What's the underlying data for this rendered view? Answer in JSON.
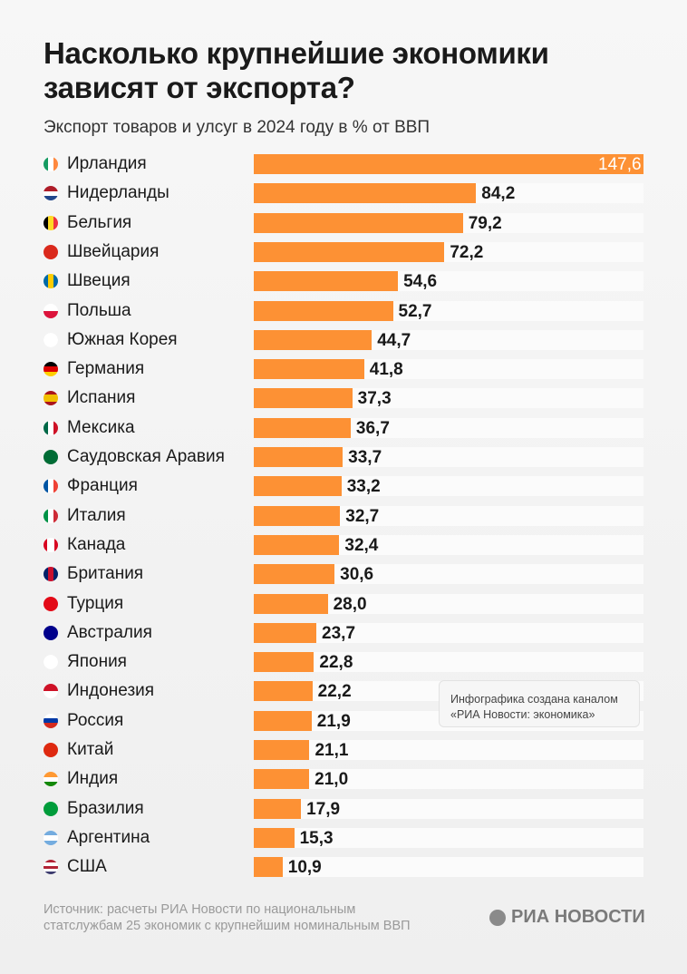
{
  "chart_data": {
    "type": "bar",
    "orientation": "horizontal",
    "title": "Насколько крупнейшие экономики зависят от экспорта?",
    "subtitle": "Экспорт товаров и улсуг в 2024 году в % от ВВП",
    "bar_color": "#fd9134",
    "xlim": [
      0,
      147.6
    ],
    "grid": false,
    "categories": [
      "Ирландия",
      "Нидерланды",
      "Бельгия",
      "Швейцария",
      "Швеция",
      "Польша",
      "Южная Корея",
      "Германия",
      "Испания",
      "Мексика",
      "Саудовская Аравия",
      "Франция",
      "Италия",
      "Канада",
      "Британия",
      "Турция",
      "Австралия",
      "Япония",
      "Индонезия",
      "Россия",
      "Китай",
      "Индия",
      "Бразилия",
      "Аргентина",
      "США"
    ],
    "values": [
      147.6,
      84.2,
      79.2,
      72.2,
      54.6,
      52.7,
      44.7,
      41.8,
      37.3,
      36.7,
      33.7,
      33.2,
      32.7,
      32.4,
      30.6,
      28.0,
      23.7,
      22.8,
      22.2,
      21.9,
      21.1,
      21.0,
      17.9,
      15.3,
      10.9
    ],
    "labels": [
      "147,6",
      "84,2",
      "79,2",
      "72,2",
      "54,6",
      "52,7",
      "44,7",
      "41,8",
      "37,3",
      "36,7",
      "33,7",
      "33,2",
      "32,7",
      "32,4",
      "30,6",
      "28,0",
      "23,7",
      "22,8",
      "22,2",
      "21,9",
      "21,1",
      "21,0",
      "17,9",
      "15,3",
      "10,9"
    ],
    "flags": [
      {
        "icon": "ireland-flag-icon",
        "dir": "v",
        "colors": [
          "#169b62",
          "#ffffff",
          "#ff883e"
        ]
      },
      {
        "icon": "netherlands-flag-icon",
        "dir": "h",
        "colors": [
          "#ae1c28",
          "#ffffff",
          "#21468b"
        ]
      },
      {
        "icon": "belgium-flag-icon",
        "dir": "v",
        "colors": [
          "#000000",
          "#fdda24",
          "#ef3340"
        ]
      },
      {
        "icon": "switzerland-flag-icon",
        "dir": "v",
        "colors": [
          "#da291c"
        ]
      },
      {
        "icon": "sweden-flag-icon",
        "dir": "v",
        "colors": [
          "#006aa7",
          "#fecc00",
          "#006aa7"
        ]
      },
      {
        "icon": "poland-flag-icon",
        "dir": "h",
        "colors": [
          "#ffffff",
          "#dc143c"
        ]
      },
      {
        "icon": "south-korea-flag-icon",
        "dir": "v",
        "colors": [
          "#ffffff"
        ]
      },
      {
        "icon": "germany-flag-icon",
        "dir": "h",
        "colors": [
          "#000000",
          "#dd0000",
          "#ffce00"
        ]
      },
      {
        "icon": "spain-flag-icon",
        "dir": "h",
        "colors": [
          "#aa151b",
          "#f1bf00",
          "#f1bf00",
          "#aa151b"
        ]
      },
      {
        "icon": "mexico-flag-icon",
        "dir": "v",
        "colors": [
          "#006847",
          "#ffffff",
          "#ce1126"
        ]
      },
      {
        "icon": "saudi-arabia-flag-icon",
        "dir": "v",
        "colors": [
          "#006c35"
        ]
      },
      {
        "icon": "france-flag-icon",
        "dir": "v",
        "colors": [
          "#0055a4",
          "#ffffff",
          "#ef4135"
        ]
      },
      {
        "icon": "italy-flag-icon",
        "dir": "v",
        "colors": [
          "#009246",
          "#ffffff",
          "#ce2b37"
        ]
      },
      {
        "icon": "canada-flag-icon",
        "dir": "v",
        "colors": [
          "#d80621",
          "#ffffff",
          "#ffffff",
          "#d80621"
        ]
      },
      {
        "icon": "uk-flag-icon",
        "dir": "v",
        "colors": [
          "#012169",
          "#c8102e",
          "#012169"
        ]
      },
      {
        "icon": "turkey-flag-icon",
        "dir": "v",
        "colors": [
          "#e30a17"
        ]
      },
      {
        "icon": "australia-flag-icon",
        "dir": "v",
        "colors": [
          "#00008b"
        ]
      },
      {
        "icon": "japan-flag-icon",
        "dir": "v",
        "colors": [
          "#ffffff"
        ]
      },
      {
        "icon": "indonesia-flag-icon",
        "dir": "h",
        "colors": [
          "#ce1126",
          "#ffffff"
        ]
      },
      {
        "icon": "russia-flag-icon",
        "dir": "h",
        "colors": [
          "#ffffff",
          "#0039a6",
          "#d52b1e"
        ]
      },
      {
        "icon": "china-flag-icon",
        "dir": "v",
        "colors": [
          "#de2910"
        ]
      },
      {
        "icon": "india-flag-icon",
        "dir": "h",
        "colors": [
          "#ff9933",
          "#ffffff",
          "#138808"
        ]
      },
      {
        "icon": "brazil-flag-icon",
        "dir": "v",
        "colors": [
          "#009c3b"
        ]
      },
      {
        "icon": "argentina-flag-icon",
        "dir": "h",
        "colors": [
          "#74acdf",
          "#ffffff",
          "#74acdf"
        ]
      },
      {
        "icon": "usa-flag-icon",
        "dir": "h",
        "colors": [
          "#b22234",
          "#ffffff",
          "#b22234",
          "#ffffff",
          "#3c3b6e"
        ]
      }
    ]
  },
  "note": "Инфографика создана каналом «РИА Новости: экономика»",
  "source": {
    "line1": "Источник: расчеты РИА Новости по национальным",
    "line2": "статслужбам 25 экономик с крупнейшим номинальным ВВП"
  },
  "logo": "РИА НОВОСТИ"
}
